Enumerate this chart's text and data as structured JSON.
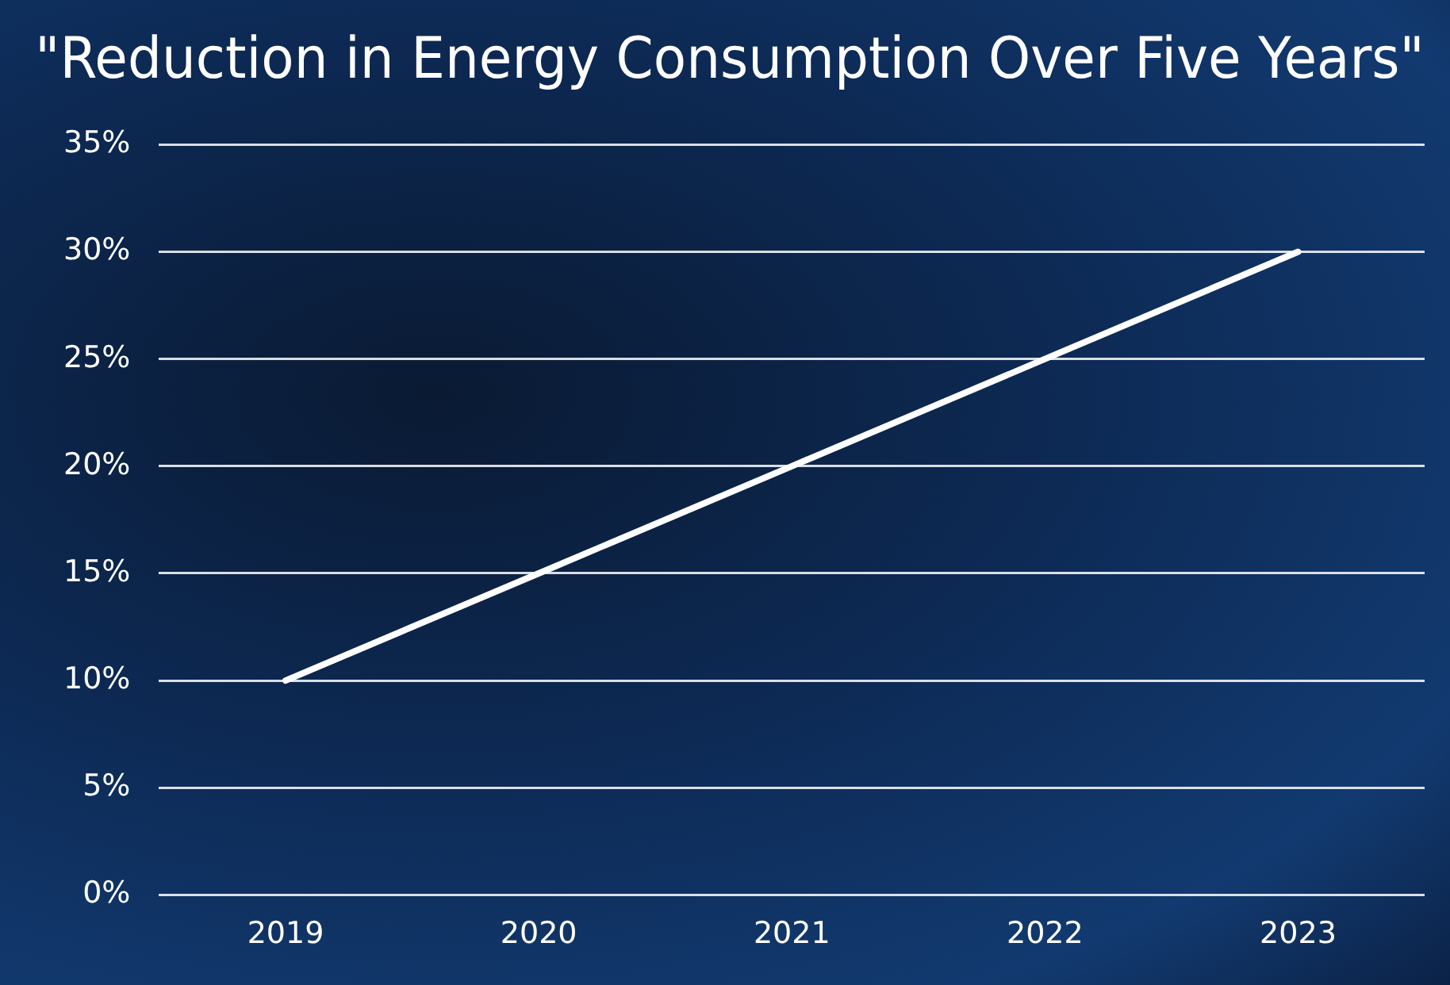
{
  "chart_data": {
    "type": "line",
    "title": "\"Reduction in Energy Consumption Over Five Years\"",
    "categories": [
      "2019",
      "2020",
      "2021",
      "2022",
      "2023"
    ],
    "series": [
      {
        "color": "#ffffff",
        "values": [
          10,
          15,
          20,
          25,
          30
        ]
      }
    ],
    "ylim": [
      0,
      35
    ],
    "yticks": [
      {
        "value": 0,
        "label": "0%"
      },
      {
        "value": 5,
        "label": "5%"
      },
      {
        "value": 10,
        "label": "10%"
      },
      {
        "value": 15,
        "label": "15%"
      },
      {
        "value": 20,
        "label": "20%"
      },
      {
        "value": 25,
        "label": "25%"
      },
      {
        "value": 30,
        "label": "30%"
      },
      {
        "value": 35,
        "label": "35%"
      }
    ],
    "grid": "y",
    "legend": false,
    "marker": "none",
    "line_style": "solid"
  }
}
